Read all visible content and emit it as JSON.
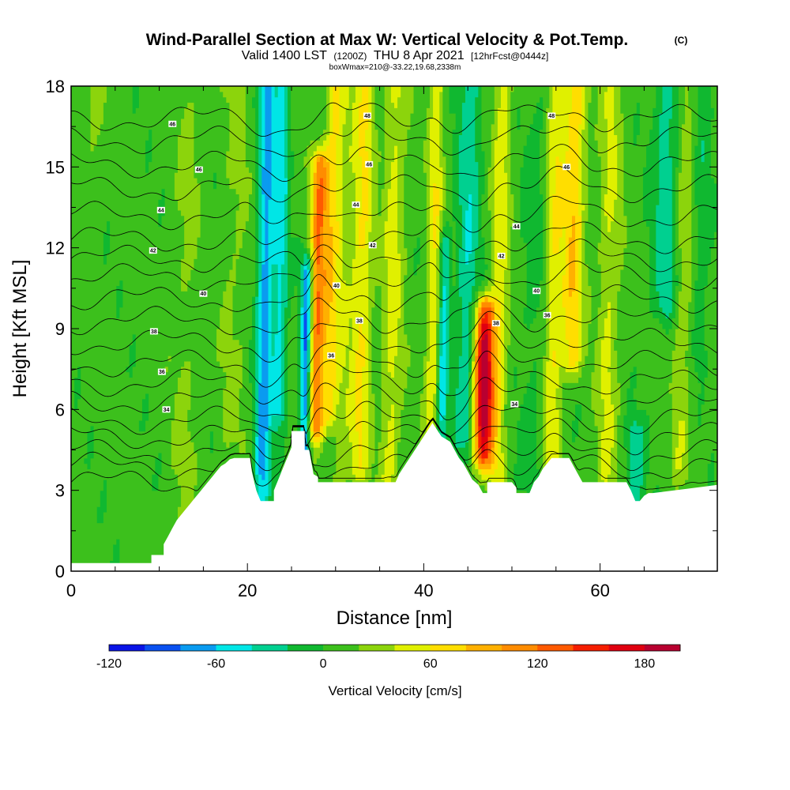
{
  "chart_data": {
    "type": "heatmap",
    "title": "Wind-Parallel Section at Max W: Vertical Velocity & Pot.Temp.",
    "title_mark": "(C)",
    "subtitle_main": "Valid 1400 LST",
    "subtitle_utc": "(1200Z)",
    "subtitle_date": "THU 8 Apr 2021",
    "subtitle_fcst": "[12hrFcst@0444z]",
    "subtitle_box": "boxWmax=210@-33.22,19.68,2338m",
    "xlabel": "Distance [nm]",
    "ylabel": "Height [Kft MSL]",
    "xlim": [
      0,
      73.3
    ],
    "ylim": [
      0,
      18
    ],
    "x_ticks": [
      0,
      20,
      40,
      60
    ],
    "y_ticks": [
      0,
      3,
      6,
      9,
      12,
      15,
      18
    ],
    "colorbar": {
      "label": "Vertical Velocity [cm/s]",
      "tick_values": [
        -120,
        -60,
        0,
        60,
        120,
        180
      ],
      "tick_labels": [
        "-120",
        "-60",
        "0",
        "60",
        "120",
        "180"
      ],
      "bounds": [
        -120,
        200
      ],
      "colors": [
        "#0a14e6",
        "#0a50f0",
        "#0a9bf0",
        "#00e6e6",
        "#00d090",
        "#10b830",
        "#3cc01c",
        "#8cd40c",
        "#e0f000",
        "#ffde00",
        "#ffb000",
        "#ff8c00",
        "#ff5a00",
        "#f51e00",
        "#e00010",
        "#b80030"
      ]
    },
    "terrain_profile": {
      "x": [
        0,
        9.1,
        9.1,
        10.5,
        10.5,
        11,
        11.5,
        12,
        12.5,
        13,
        13.5,
        14,
        14.5,
        15,
        15.5,
        16,
        16.5,
        17,
        17.5,
        18,
        18.5,
        20.3,
        20.5,
        21,
        21.5,
        21.5,
        23,
        23,
        23.5,
        24,
        24.5,
        25,
        25,
        26.5,
        26.5,
        27,
        27.5,
        28,
        28,
        30,
        32,
        35,
        36.8,
        37.2,
        37.8,
        38.4,
        39,
        39.6,
        40.2,
        41,
        42,
        43,
        43.5,
        44,
        44.5,
        45,
        45.5,
        46.2,
        46.7,
        47.2,
        47.2,
        48,
        50,
        50.5,
        50.5,
        52,
        52.5,
        53,
        53.5,
        54,
        54.5,
        55,
        56.5,
        57,
        57.5,
        58,
        63,
        63.5,
        64,
        64.5,
        65,
        65.5,
        66,
        73.3
      ],
      "h": [
        0.3,
        0.3,
        0.6,
        0.6,
        1.0,
        1.3,
        1.6,
        1.9,
        2.1,
        2.3,
        2.5,
        2.7,
        2.9,
        3.1,
        3.3,
        3.5,
        3.7,
        3.9,
        4.0,
        4.15,
        4.2,
        4.2,
        3.7,
        3.0,
        2.6,
        2.6,
        2.6,
        3.0,
        3.4,
        3.8,
        4.2,
        4.6,
        5.2,
        5.2,
        4.5,
        4.5,
        3.6,
        3.5,
        3.3,
        3.3,
        3.3,
        3.3,
        3.3,
        3.6,
        3.9,
        4.2,
        4.5,
        4.8,
        5.1,
        5.5,
        5.0,
        4.8,
        4.5,
        4.2,
        4.0,
        3.7,
        3.4,
        3.2,
        2.9,
        2.9,
        3.3,
        3.3,
        3.3,
        3.1,
        2.9,
        2.9,
        3.3,
        3.5,
        3.8,
        4.0,
        4.2,
        4.2,
        4.2,
        3.9,
        3.6,
        3.3,
        3.3,
        3.0,
        2.6,
        2.6,
        2.8,
        2.9,
        2.9,
        3.2
      ]
    },
    "w_features": [
      {
        "x": 22.0,
        "h_lo": 3.0,
        "h_hi": 18,
        "w": -80,
        "half_width_nm": 0.9
      },
      {
        "x": 23.8,
        "h_lo": 6.0,
        "h_hi": 18,
        "w": -55,
        "half_width_nm": 0.8
      },
      {
        "x": 26.6,
        "h_lo": 4.6,
        "h_hi": 11,
        "w": -95,
        "half_width_nm": 0.6
      },
      {
        "x": 28.0,
        "h_lo": 5.5,
        "h_hi": 15,
        "w": 110,
        "half_width_nm": 0.9
      },
      {
        "x": 29.6,
        "h_lo": 6.0,
        "h_hi": 18,
        "w": 60,
        "half_width_nm": 0.9
      },
      {
        "x": 31.0,
        "h_lo": 3.3,
        "h_hi": 18,
        "w": 25,
        "half_width_nm": 1.0
      },
      {
        "x": 33.0,
        "h_lo": 4.0,
        "h_hi": 18,
        "w": 55,
        "half_width_nm": 1.1
      },
      {
        "x": 36.5,
        "h_lo": 3.5,
        "h_hi": 18,
        "w": 40,
        "half_width_nm": 1.2
      },
      {
        "x": 41.2,
        "h_lo": 4.8,
        "h_hi": 18,
        "w": 50,
        "half_width_nm": 0.8
      },
      {
        "x": 42.2,
        "h_lo": 4.8,
        "h_hi": 12,
        "w": -60,
        "half_width_nm": 0.6
      },
      {
        "x": 45.0,
        "h_lo": 5.0,
        "h_hi": 18,
        "w": -45,
        "half_width_nm": 1.3
      },
      {
        "x": 46.8,
        "h_lo": 4.4,
        "h_hi": 9.6,
        "w": 200,
        "half_width_nm": 1.1
      },
      {
        "x": 48.6,
        "h_lo": 3.0,
        "h_hi": 18,
        "w": 45,
        "half_width_nm": 1.0
      },
      {
        "x": 52.5,
        "h_lo": 3.5,
        "h_hi": 18,
        "w": -15,
        "half_width_nm": 1.5
      },
      {
        "x": 54.8,
        "h_lo": 3.5,
        "h_hi": 18,
        "w": 50,
        "half_width_nm": 1.0
      },
      {
        "x": 57.0,
        "h_lo": 8.0,
        "h_hi": 18,
        "w": 70,
        "half_width_nm": 1.2
      },
      {
        "x": 61.0,
        "h_lo": 3.5,
        "h_hi": 18,
        "w": 35,
        "half_width_nm": 1.2
      },
      {
        "x": 64.0,
        "h_lo": 3.0,
        "h_hi": 5,
        "w": -45,
        "half_width_nm": 1.0
      },
      {
        "x": 67.5,
        "h_lo": 10.0,
        "h_hi": 18,
        "w": -40,
        "half_width_nm": 1.5
      },
      {
        "x": 69.5,
        "h_lo": 4.0,
        "h_hi": 18,
        "w": 30,
        "half_width_nm": 1.0
      },
      {
        "x": 71.5,
        "h_lo": 8.0,
        "h_hi": 18,
        "w": -20,
        "half_width_nm": 1.0
      },
      {
        "x": 13.0,
        "h_lo": 1.0,
        "h_hi": 18,
        "w": 15,
        "half_width_nm": 1.5
      },
      {
        "x": 18.5,
        "h_lo": 5.0,
        "h_hi": 18,
        "w": 15,
        "half_width_nm": 1.5
      },
      {
        "x": 2.5,
        "h_lo": 14.0,
        "h_hi": 18,
        "w": 15,
        "half_width_nm": 1.5
      }
    ],
    "theta_contours": {
      "values": [
        30,
        31,
        32,
        33,
        34,
        35,
        36,
        37,
        38,
        39,
        40,
        41,
        42,
        43,
        44,
        45,
        46,
        47,
        48
      ],
      "base_height_kft": [
        3.3,
        3.9,
        4.4,
        5.0,
        5.6,
        6.3,
        7.0,
        7.7,
        8.5,
        9.3,
        10.1,
        10.9,
        11.6,
        12.3,
        13.2,
        14.2,
        15.1,
        16.0,
        16.8
      ]
    },
    "contour_labels": [
      {
        "text": "46",
        "x": 11.5,
        "h": 16.6
      },
      {
        "text": "46",
        "x": 14.5,
        "h": 14.9
      },
      {
        "text": "44",
        "x": 10.2,
        "h": 13.4
      },
      {
        "text": "42",
        "x": 9.3,
        "h": 11.9
      },
      {
        "text": "40",
        "x": 15.0,
        "h": 10.3
      },
      {
        "text": "38",
        "x": 9.4,
        "h": 8.9
      },
      {
        "text": "36",
        "x": 10.3,
        "h": 7.4
      },
      {
        "text": "34",
        "x": 10.8,
        "h": 6.0
      },
      {
        "text": "48",
        "x": 33.6,
        "h": 16.9
      },
      {
        "text": "46",
        "x": 33.8,
        "h": 15.1
      },
      {
        "text": "44",
        "x": 32.3,
        "h": 13.6
      },
      {
        "text": "42",
        "x": 34.2,
        "h": 12.1
      },
      {
        "text": "40",
        "x": 30.1,
        "h": 10.6
      },
      {
        "text": "38",
        "x": 32.7,
        "h": 9.3
      },
      {
        "text": "36",
        "x": 29.5,
        "h": 8.0
      },
      {
        "text": "48",
        "x": 54.5,
        "h": 16.9
      },
      {
        "text": "46",
        "x": 56.2,
        "h": 15.0
      },
      {
        "text": "44",
        "x": 50.5,
        "h": 12.8
      },
      {
        "text": "42",
        "x": 48.8,
        "h": 11.7
      },
      {
        "text": "40",
        "x": 52.8,
        "h": 10.4
      },
      {
        "text": "36",
        "x": 54.0,
        "h": 9.5
      },
      {
        "text": "38",
        "x": 48.2,
        "h": 9.2
      },
      {
        "text": "34",
        "x": 50.3,
        "h": 6.2
      }
    ]
  }
}
